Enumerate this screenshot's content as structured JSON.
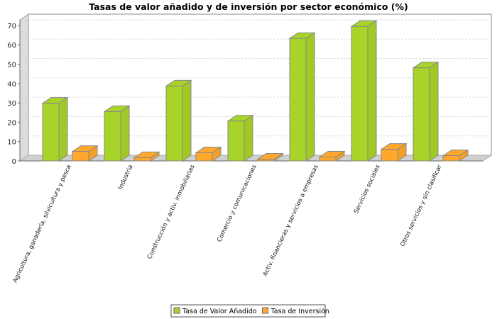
{
  "chart_data": {
    "type": "bar",
    "title": "Tasas de valor añadido y de inversión por sector económico (%)",
    "categories": [
      "Agricultura, ganadería, silvicultura y pesca",
      "Industria",
      "Construcción y activ. inmobiliarias",
      "Comercio y comunicaciones",
      "Activ. financieras y servicios a empresas",
      "Servicios sociales",
      "Otros servicios y sin clasificar"
    ],
    "series": [
      {
        "name": "Tasa de Valor Añadido",
        "color": "#a8d42a",
        "values": [
          29.8,
          25.5,
          38.7,
          20.6,
          63.3,
          69.5,
          48.1
        ]
      },
      {
        "name": "Tasa de Inversión",
        "color": "#ffa82c",
        "values": [
          4.9,
          1.7,
          4.2,
          0.9,
          2.0,
          6.0,
          2.7
        ]
      }
    ],
    "yticks": [
      0,
      10,
      20,
      30,
      40,
      50,
      60,
      70
    ],
    "ylim": [
      0,
      72
    ],
    "grid": true,
    "style": "3d",
    "legend": "bottom"
  }
}
